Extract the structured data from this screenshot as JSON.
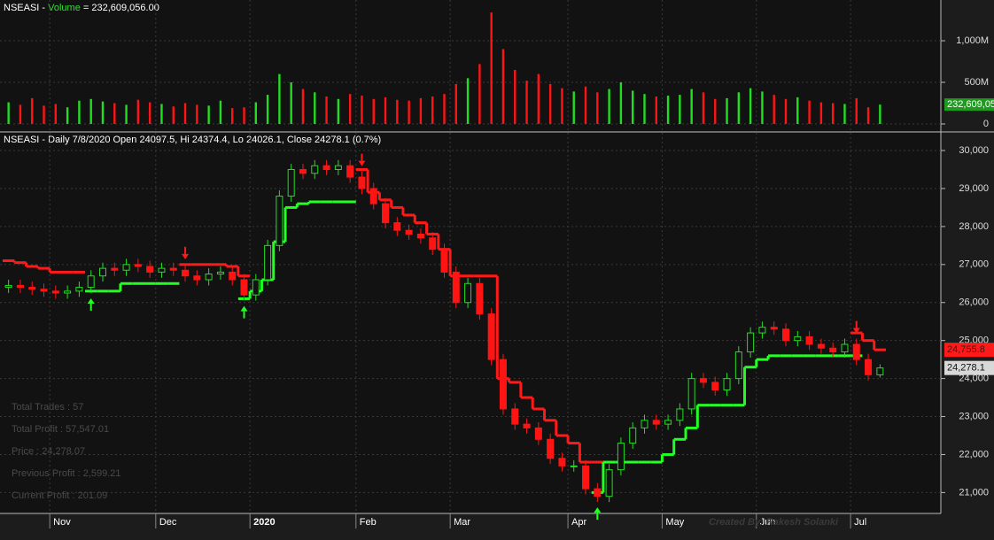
{
  "chart_data": [
    {
      "type": "bar",
      "title_parts": [
        "NSEASI - ",
        "Volume",
        " = 232,609,056.00"
      ],
      "values": [
        260000000,
        230000000,
        310000000,
        220000000,
        240000000,
        200000000,
        280000000,
        300000000,
        270000000,
        250000000,
        230000000,
        290000000,
        260000000,
        240000000,
        210000000,
        250000000,
        230000000,
        220000000,
        280000000,
        190000000,
        200000000,
        260000000,
        350000000,
        600000000,
        500000000,
        420000000,
        380000000,
        330000000,
        300000000,
        360000000,
        340000000,
        300000000,
        320000000,
        290000000,
        280000000,
        310000000,
        330000000,
        360000000,
        480000000,
        550000000,
        720000000,
        1340000000,
        900000000,
        650000000,
        520000000,
        600000000,
        480000000,
        430000000,
        390000000,
        450000000,
        380000000,
        420000000,
        500000000,
        400000000,
        360000000,
        330000000,
        340000000,
        350000000,
        420000000,
        380000000,
        300000000,
        310000000,
        380000000,
        430000000,
        390000000,
        350000000,
        300000000,
        320000000,
        280000000,
        260000000,
        250000000,
        240000000,
        310000000,
        200000000,
        232609056
      ],
      "ylim": [
        0,
        1490000000
      ],
      "yticks": [
        0,
        {
          "value": 500000000,
          "label": "500M"
        },
        {
          "value": 1000000000,
          "label": "1,000M"
        }
      ],
      "grid": true,
      "last_label": "232,609,056",
      "label_color": "#1f9a1f"
    },
    {
      "type": "candlestick",
      "title": "NSEASI - Daily 7/8/2020 Open 24097.5, Hi 24374.4, Lo 24026.1, Close 24278.1 (0.7%)",
      "categories": [
        null,
        null,
        null,
        null,
        "Nov",
        null,
        null,
        null,
        null,
        null,
        null,
        null,
        null,
        "Dec",
        null,
        null,
        null,
        null,
        null,
        null,
        null,
        "2020",
        null,
        null,
        null,
        null,
        null,
        null,
        null,
        null,
        "Feb",
        null,
        null,
        null,
        null,
        null,
        null,
        null,
        "Mar",
        null,
        null,
        null,
        null,
        null,
        null,
        null,
        null,
        null,
        "Apr",
        null,
        null,
        null,
        null,
        null,
        null,
        null,
        "May",
        null,
        null,
        null,
        null,
        null,
        null,
        null,
        "Jun",
        null,
        null,
        null,
        null,
        null,
        null,
        null,
        "Jul",
        null,
        null
      ],
      "open": [
        26400,
        26450,
        26400,
        26350,
        26300,
        26250,
        26300,
        26400,
        26700,
        26900,
        26850,
        27000,
        26950,
        26800,
        26900,
        26850,
        26700,
        26600,
        26750,
        26800,
        26600,
        26200,
        26600,
        27500,
        28800,
        29500,
        29400,
        29600,
        29500,
        29600,
        29300,
        29000,
        28600,
        28100,
        27900,
        27800,
        27700,
        27400,
        26800,
        26000,
        26500,
        25700,
        24500,
        23200,
        22800,
        22700,
        22400,
        21900,
        21700,
        21700,
        21100,
        20900,
        21600,
        22300,
        22700,
        22900,
        22800,
        22900,
        23200,
        24000,
        23900,
        23700,
        24000,
        24700,
        25200,
        25350,
        25300,
        25000,
        25100,
        24900,
        24800,
        24700,
        24900,
        24500,
        24097.5
      ],
      "high": [
        26600,
        26600,
        26550,
        26500,
        26450,
        26450,
        26550,
        26850,
        27050,
        27050,
        27150,
        27150,
        27100,
        27050,
        27050,
        27000,
        26850,
        26900,
        26950,
        26950,
        26750,
        26750,
        27650,
        28950,
        29650,
        29650,
        29750,
        29750,
        29750,
        29750,
        29450,
        29150,
        28750,
        28250,
        28050,
        27950,
        27850,
        27550,
        26950,
        26650,
        26650,
        25850,
        24650,
        23350,
        22950,
        22850,
        22550,
        22050,
        21850,
        21850,
        21250,
        21750,
        22450,
        22850,
        23050,
        23050,
        23050,
        23350,
        24150,
        24150,
        24050,
        24150,
        24850,
        25350,
        25500,
        25500,
        25450,
        25250,
        25250,
        25050,
        24950,
        25050,
        25050,
        24650,
        24374.4
      ],
      "low": [
        26250,
        26250,
        26200,
        26150,
        26100,
        26100,
        26150,
        26250,
        26550,
        26700,
        26700,
        26800,
        26650,
        26650,
        26700,
        26550,
        26450,
        26450,
        26600,
        26450,
        26050,
        26050,
        26450,
        27350,
        28650,
        29250,
        29250,
        29350,
        29350,
        29150,
        28850,
        28450,
        27950,
        27750,
        27650,
        27550,
        27250,
        26650,
        25850,
        25850,
        25550,
        24350,
        23050,
        22650,
        22550,
        22250,
        21750,
        21550,
        21550,
        20950,
        20750,
        20750,
        21450,
        22150,
        22550,
        22650,
        22650,
        22750,
        23050,
        23750,
        23550,
        23550,
        23850,
        24550,
        25050,
        25150,
        24850,
        24850,
        24750,
        24650,
        24550,
        24550,
        24350,
        23950,
        24026.1
      ],
      "close": [
        26450,
        26400,
        26350,
        26300,
        26250,
        26300,
        26400,
        26700,
        26900,
        26850,
        27000,
        26950,
        26800,
        26900,
        26850,
        26700,
        26600,
        26750,
        26800,
        26600,
        26200,
        26600,
        27500,
        28800,
        29500,
        29400,
        29600,
        29500,
        29600,
        29300,
        29000,
        28600,
        28100,
        27900,
        27800,
        27700,
        27400,
        26800,
        26000,
        26500,
        25700,
        24500,
        23200,
        22800,
        22700,
        22400,
        21900,
        21700,
        21700,
        21100,
        20900,
        21600,
        22300,
        22700,
        22900,
        22800,
        22900,
        23200,
        24000,
        23900,
        23700,
        24000,
        24700,
        25200,
        25350,
        25300,
        25000,
        25100,
        24900,
        24800,
        24700,
        24900,
        24500,
        24100,
        24278.1
      ],
      "up_color": "#22dd22",
      "down_color": "#ff1414",
      "stops": [
        {
          "color": "#ff1a1a",
          "values": [
            27100,
            27050,
            26950,
            26900,
            26800,
            26800,
            26800,
            null,
            null,
            null,
            null,
            null,
            null,
            null,
            null,
            27000,
            27000,
            27000,
            27000,
            26950,
            26700,
            null,
            null,
            null,
            null,
            null,
            null,
            null,
            null,
            null,
            29500,
            28900,
            28700,
            28500,
            28300,
            28100,
            27800,
            27400,
            26700,
            26700,
            26700,
            26700,
            24000,
            23900,
            23500,
            23200,
            22900,
            22500,
            22300,
            21800,
            21800,
            null,
            null,
            null,
            null,
            null,
            null,
            null,
            null,
            null,
            null,
            null,
            null,
            null,
            null,
            null,
            null,
            null,
            null,
            null,
            null,
            null,
            25200,
            25000,
            24755.8
          ]
        },
        {
          "color": "#22ff22",
          "values": [
            null,
            null,
            null,
            null,
            null,
            null,
            null,
            26300,
            26300,
            26300,
            26500,
            26500,
            26500,
            26500,
            26500,
            null,
            null,
            null,
            null,
            null,
            26100,
            26300,
            26600,
            27600,
            28500,
            28600,
            28650,
            28650,
            28650,
            28650,
            null,
            null,
            null,
            null,
            null,
            null,
            null,
            null,
            null,
            null,
            null,
            null,
            null,
            null,
            null,
            null,
            null,
            null,
            null,
            null,
            21000,
            21800,
            21800,
            21800,
            21800,
            21800,
            22000,
            22400,
            22700,
            23300,
            23300,
            23300,
            23300,
            24300,
            24500,
            24600,
            24600,
            24600,
            24600,
            24600,
            24600,
            24600,
            24600,
            null,
            null
          ]
        }
      ],
      "ylim": [
        20450,
        30420
      ],
      "yticks": [
        {
          "value": 21000,
          "label": "21,000"
        },
        {
          "value": 22000,
          "label": "22,000"
        },
        {
          "value": 23000,
          "label": "23,000"
        },
        {
          "value": 24000,
          "label": "24,000"
        },
        {
          "value": 25000,
          "label": "25,000"
        },
        {
          "value": 26000,
          "label": "26,000"
        },
        {
          "value": 27000,
          "label": "27,000"
        },
        {
          "value": 28000,
          "label": "28,000"
        },
        {
          "value": 29000,
          "label": "29,000"
        },
        {
          "value": 30000,
          "label": "30,000"
        }
      ],
      "grid": true,
      "close_label": "24,278.1",
      "stop_label": "24,755.8",
      "stats": [
        "Total Trades :  57",
        "Total Profit : 57,547.01",
        "Price : 24,278.07",
        "Previous Profit : 2,599.21",
        "Current Profit : 201.09"
      ],
      "watermark": "Created By: Rakesh Solanki"
    }
  ]
}
